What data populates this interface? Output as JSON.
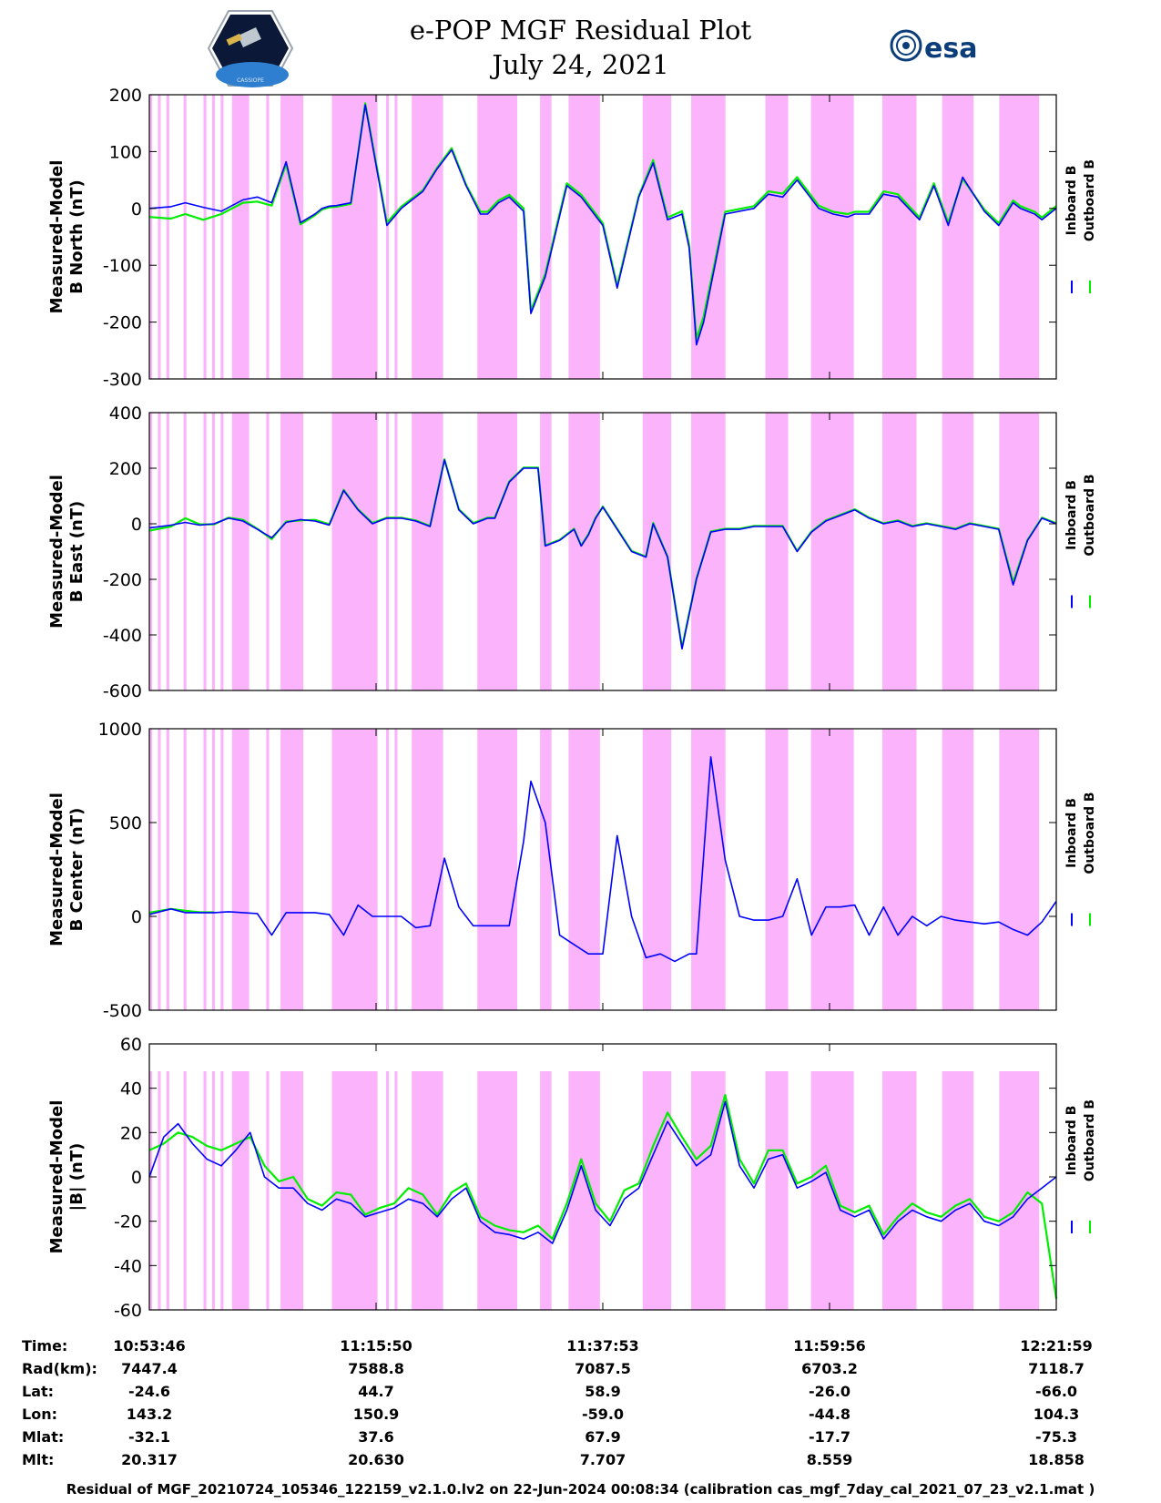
{
  "header": {
    "title_line1": "e-POP MGF Residual Plot",
    "title_line2": "July 24, 2021",
    "left_logo_label": "CASSIOPE",
    "right_logo_label": "esa"
  },
  "colors": {
    "inboard": "#0000ff",
    "outboard": "#00ee00",
    "shade": "#fbb4fb",
    "axis": "#000000"
  },
  "chart_data": [
    {
      "type": "line",
      "title": "B North",
      "ylabel_line1": "Measured-Model",
      "ylabel_line2": "B North (nT)",
      "ylim": [
        -300,
        200
      ],
      "yticks": [
        "200",
        "100",
        "0",
        "-100",
        "-200",
        "-300"
      ],
      "legend": [
        "Inboard B",
        "Outboard B"
      ],
      "series": [
        {
          "name": "Inboard B",
          "x": [
            0,
            6,
            10,
            15,
            20,
            26,
            30,
            34,
            38,
            42,
            46,
            48,
            50,
            52,
            56,
            60,
            66,
            70,
            76,
            80,
            84,
            88,
            92,
            94,
            97,
            100,
            104,
            106,
            110,
            116,
            120,
            126,
            130,
            136,
            140,
            144,
            148,
            150,
            152,
            154,
            160,
            168,
            172,
            176,
            180,
            186,
            190,
            194,
            196,
            200,
            204,
            208,
            214,
            218,
            222,
            226,
            232,
            236,
            240,
            242,
            246,
            248,
            250,
            252
          ],
          "y": [
            0,
            3,
            10,
            2,
            -5,
            15,
            20,
            10,
            82,
            -25,
            -10,
            0,
            4,
            5,
            10,
            182,
            -30,
            0,
            30,
            70,
            103,
            40,
            -10,
            -10,
            10,
            20,
            -5,
            -185,
            -120,
            40,
            20,
            -30,
            -140,
            20,
            80,
            -20,
            -10,
            -70,
            -240,
            -200,
            -10,
            0,
            25,
            20,
            50,
            0,
            -10,
            -15,
            -10,
            -10,
            25,
            20,
            -20,
            40,
            -30,
            55,
            -5,
            -30,
            10,
            0,
            -10,
            -20,
            -10,
            0
          ]
        },
        {
          "name": "Outboard B",
          "x": [
            0,
            6,
            10,
            15,
            20,
            26,
            30,
            34,
            38,
            42,
            46,
            48,
            50,
            52,
            56,
            60,
            66,
            70,
            76,
            80,
            84,
            88,
            92,
            94,
            97,
            100,
            104,
            106,
            110,
            116,
            120,
            126,
            130,
            136,
            140,
            144,
            148,
            150,
            152,
            154,
            160,
            168,
            172,
            176,
            180,
            186,
            190,
            194,
            196,
            200,
            204,
            208,
            214,
            218,
            222,
            226,
            232,
            236,
            240,
            242,
            246,
            248,
            250,
            252
          ],
          "y": [
            -15,
            -18,
            -10,
            -20,
            -10,
            10,
            12,
            5,
            78,
            -28,
            -12,
            -2,
            2,
            3,
            8,
            185,
            -25,
            3,
            32,
            72,
            106,
            42,
            -6,
            -6,
            14,
            24,
            0,
            -180,
            -115,
            44,
            24,
            -26,
            -136,
            22,
            85,
            -16,
            -5,
            -65,
            -230,
            -190,
            -6,
            4,
            30,
            26,
            55,
            5,
            -6,
            -10,
            -6,
            -6,
            30,
            25,
            -16,
            44,
            -25,
            52,
            -2,
            -26,
            14,
            4,
            -6,
            -16,
            -6,
            4
          ]
        }
      ]
    },
    {
      "type": "line",
      "title": "B East",
      "ylabel_line1": "Measured-Model",
      "ylabel_line2": "B East (nT)",
      "ylim": [
        -600,
        400
      ],
      "yticks": [
        "400",
        "200",
        "0",
        "-200",
        "-400",
        "-600"
      ],
      "legend": [
        "Inboard B",
        "Outboard B"
      ],
      "series": [
        {
          "name": "Inboard B",
          "x": [
            0,
            6,
            10,
            14,
            18,
            22,
            26,
            30,
            34,
            38,
            42,
            46,
            50,
            54,
            58,
            62,
            66,
            70,
            74,
            78,
            82,
            86,
            90,
            92,
            94,
            96,
            100,
            104,
            108,
            110,
            114,
            118,
            120,
            122,
            124,
            126,
            130,
            134,
            138,
            140,
            144,
            148,
            152,
            156,
            160,
            164,
            168,
            172,
            176,
            180,
            184,
            188,
            192,
            196,
            200,
            204,
            208,
            212,
            216,
            220,
            224,
            228,
            232,
            236,
            240,
            244,
            248,
            252
          ],
          "y": [
            -15,
            -5,
            5,
            -5,
            0,
            20,
            10,
            -20,
            -50,
            5,
            15,
            10,
            -5,
            120,
            50,
            0,
            20,
            20,
            10,
            -10,
            230,
            50,
            0,
            10,
            20,
            20,
            150,
            200,
            200,
            -80,
            -60,
            -20,
            -80,
            -40,
            20,
            60,
            -20,
            -100,
            -120,
            0,
            -120,
            -450,
            -200,
            -30,
            -20,
            -20,
            -10,
            -10,
            -10,
            -100,
            -30,
            10,
            30,
            50,
            20,
            0,
            10,
            -10,
            0,
            -10,
            -20,
            0,
            -10,
            -20,
            -220,
            -60,
            20,
            0
          ]
        },
        {
          "name": "Outboard B",
          "x": [
            0,
            6,
            10,
            14,
            18,
            22,
            26,
            30,
            34,
            38,
            42,
            46,
            50,
            54,
            58,
            62,
            66,
            70,
            74,
            78,
            82,
            86,
            90,
            92,
            94,
            96,
            100,
            104,
            108,
            110,
            114,
            118,
            120,
            122,
            124,
            126,
            130,
            134,
            138,
            140,
            144,
            148,
            152,
            156,
            160,
            164,
            168,
            172,
            176,
            180,
            184,
            188,
            192,
            196,
            200,
            204,
            208,
            212,
            216,
            220,
            224,
            228,
            232,
            236,
            240,
            244,
            248,
            252
          ],
          "y": [
            -25,
            -10,
            20,
            -2,
            -2,
            22,
            14,
            -18,
            -55,
            8,
            12,
            14,
            -2,
            122,
            52,
            3,
            22,
            22,
            12,
            -8,
            232,
            52,
            3,
            12,
            22,
            22,
            152,
            202,
            202,
            -78,
            -58,
            -18,
            -78,
            -38,
            22,
            62,
            -18,
            -98,
            -118,
            3,
            -118,
            -445,
            -198,
            -28,
            -18,
            -18,
            -8,
            -8,
            -8,
            -98,
            -28,
            12,
            32,
            52,
            22,
            2,
            12,
            -8,
            2,
            -8,
            -18,
            2,
            -8,
            -18,
            -210,
            -58,
            22,
            2
          ]
        }
      ]
    },
    {
      "type": "line",
      "title": "B Center",
      "ylabel_line1": "Measured-Model",
      "ylabel_line2": "B Center (nT)",
      "ylim": [
        -500,
        1000
      ],
      "yticks": [
        "1000",
        "500",
        "0",
        "-500"
      ],
      "legend": [
        "Inboard B",
        "Outboard B"
      ],
      "series": [
        {
          "name": "Inboard B",
          "x": [
            0,
            6,
            10,
            14,
            18,
            22,
            26,
            30,
            34,
            38,
            42,
            46,
            50,
            54,
            58,
            62,
            66,
            70,
            74,
            78,
            82,
            86,
            90,
            94,
            98,
            100,
            104,
            106,
            110,
            114,
            118,
            122,
            126,
            130,
            134,
            138,
            142,
            146,
            150,
            152,
            156,
            160,
            164,
            168,
            172,
            176,
            180,
            184,
            188,
            192,
            196,
            200,
            204,
            208,
            212,
            216,
            220,
            224,
            228,
            232,
            236,
            240,
            244,
            248,
            252
          ],
          "y": [
            10,
            40,
            20,
            20,
            20,
            25,
            20,
            15,
            -100,
            20,
            20,
            20,
            10,
            -100,
            60,
            0,
            0,
            0,
            -60,
            -50,
            310,
            50,
            -50,
            -50,
            -50,
            -50,
            400,
            720,
            500,
            -100,
            -150,
            -200,
            -200,
            430,
            0,
            -220,
            -200,
            -240,
            -200,
            -200,
            850,
            300,
            0,
            -20,
            -20,
            0,
            200,
            -100,
            50,
            50,
            60,
            -100,
            50,
            -100,
            0,
            -50,
            0,
            -20,
            -30,
            -40,
            -30,
            -70,
            -100,
            -30,
            80
          ]
        },
        {
          "name": "Outboard B",
          "x": [
            0,
            6,
            10,
            14,
            18
          ],
          "y": [
            20,
            40,
            30,
            22,
            22
          ]
        }
      ]
    },
    {
      "type": "line",
      "title": "|B|",
      "ylabel_line1": "Measured-Model",
      "ylabel_line2": "|B| (nT)",
      "ylim": [
        -60,
        60
      ],
      "yticks": [
        "60",
        "40",
        "20",
        "0",
        "-20",
        "-40",
        "-60"
      ],
      "legend": [
        "Inboard B",
        "Outboard B"
      ],
      "series": [
        {
          "name": "Inboard B",
          "x": [
            0,
            4,
            8,
            12,
            16,
            20,
            24,
            28,
            32,
            36,
            40,
            44,
            48,
            52,
            56,
            60,
            64,
            68,
            72,
            76,
            80,
            84,
            88,
            92,
            96,
            100,
            104,
            108,
            112,
            116,
            120,
            124,
            128,
            132,
            136,
            140,
            144,
            148,
            152,
            156,
            160,
            164,
            168,
            172,
            176,
            180,
            184,
            188,
            192,
            196,
            200,
            204,
            208,
            212,
            216,
            220,
            224,
            228,
            232,
            236,
            240,
            244,
            248,
            252
          ],
          "y": [
            0,
            18,
            24,
            15,
            8,
            5,
            12,
            20,
            0,
            -5,
            -5,
            -12,
            -15,
            -10,
            -12,
            -18,
            -16,
            -14,
            -10,
            -12,
            -18,
            -10,
            -5,
            -20,
            -25,
            -26,
            -28,
            -25,
            -30,
            -15,
            5,
            -15,
            -22,
            -10,
            -5,
            10,
            25,
            15,
            5,
            10,
            34,
            5,
            -5,
            8,
            10,
            -5,
            -2,
            2,
            -15,
            -18,
            -15,
            -28,
            -20,
            -15,
            -18,
            -20,
            -15,
            -12,
            -20,
            -22,
            -18,
            -10,
            -5,
            0
          ]
        },
        {
          "name": "Outboard B",
          "x": [
            0,
            4,
            8,
            12,
            16,
            20,
            24,
            28,
            32,
            36,
            40,
            44,
            48,
            52,
            56,
            60,
            64,
            68,
            72,
            76,
            80,
            84,
            88,
            92,
            96,
            100,
            104,
            108,
            112,
            116,
            120,
            124,
            128,
            132,
            136,
            140,
            144,
            148,
            152,
            156,
            160,
            164,
            168,
            172,
            176,
            180,
            184,
            188,
            192,
            196,
            200,
            204,
            208,
            212,
            216,
            220,
            224,
            228,
            232,
            236,
            240,
            244,
            248,
            252
          ],
          "y": [
            12,
            15,
            20,
            18,
            14,
            12,
            15,
            18,
            5,
            -2,
            0,
            -10,
            -13,
            -7,
            -8,
            -17,
            -14,
            -12,
            -5,
            -8,
            -17,
            -7,
            -3,
            -18,
            -22,
            -24,
            -25,
            -22,
            -28,
            -12,
            8,
            -12,
            -20,
            -6,
            -3,
            14,
            29,
            18,
            8,
            14,
            37,
            8,
            -3,
            12,
            12,
            -3,
            0,
            5,
            -13,
            -16,
            -13,
            -26,
            -18,
            -12,
            -16,
            -18,
            -13,
            -10,
            -18,
            -20,
            -16,
            -7,
            -12,
            -55
          ]
        }
      ]
    }
  ],
  "shaded_intervals": [
    [
      0,
      1
    ],
    [
      3,
      4
    ],
    [
      6,
      7
    ],
    [
      12,
      13
    ],
    [
      19,
      20
    ],
    [
      22,
      23
    ],
    [
      25,
      26
    ],
    [
      29,
      35
    ],
    [
      41,
      42
    ],
    [
      46,
      54
    ],
    [
      64,
      80
    ],
    [
      83,
      84
    ],
    [
      86,
      87
    ],
    [
      92,
      103
    ],
    [
      115,
      129
    ],
    [
      137,
      141
    ],
    [
      147,
      158
    ],
    [
      173,
      183
    ],
    [
      190,
      202
    ],
    [
      216,
      224
    ],
    [
      232,
      247
    ],
    [
      257,
      269
    ],
    [
      278,
      289
    ],
    [
      298,
      312
    ]
  ],
  "time_axis": {
    "row_labels": [
      "Time:",
      "Rad(km):",
      "Lat:",
      "Lon:",
      "Mlat:",
      "Mlt:"
    ],
    "columns": [
      {
        "time": "10:53:46",
        "rad": "7447.4",
        "lat": "-24.6",
        "lon": "143.2",
        "mlat": "-32.1",
        "mlt": "20.317"
      },
      {
        "time": "11:15:50",
        "rad": "7588.8",
        "lat": "44.7",
        "lon": "150.9",
        "mlat": "37.6",
        "mlt": "20.630"
      },
      {
        "time": "11:37:53",
        "rad": "7087.5",
        "lat": "58.9",
        "lon": "-59.0",
        "mlat": "67.9",
        "mlt": "7.707"
      },
      {
        "time": "11:59:56",
        "rad": "6703.2",
        "lat": "-26.0",
        "lon": "-44.8",
        "mlat": "-17.7",
        "mlt": "8.559"
      },
      {
        "time": "12:21:59",
        "rad": "7118.7",
        "lat": "-66.0",
        "lon": "104.3",
        "mlat": "-75.3",
        "mlt": "18.858"
      }
    ]
  },
  "footer": "Residual of MGF_20210724_105346_122159_v2.1.0.lv2 on 22-Jun-2024 00:08:34 (calibration cas_mgf_7day_cal_2021_07_23_v2.1.mat )"
}
